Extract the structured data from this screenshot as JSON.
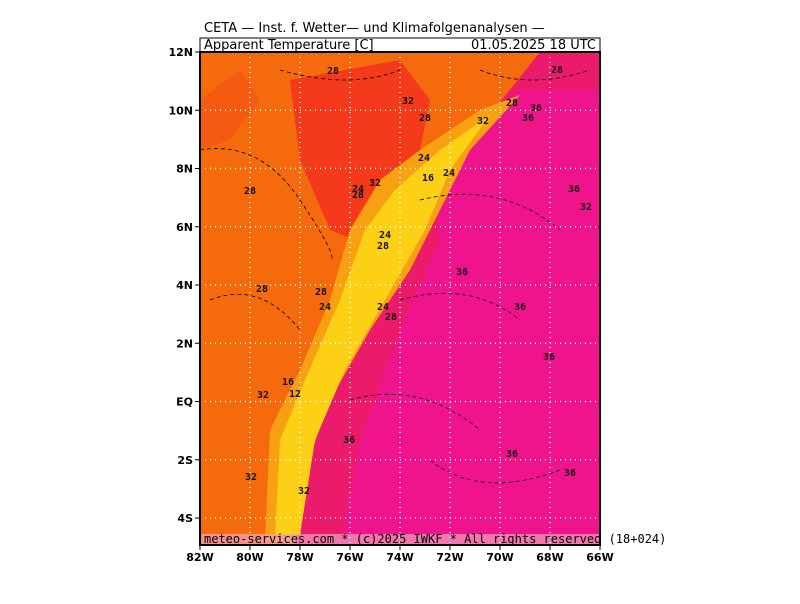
{
  "header": {
    "title": "CETA — Inst. f. Wetter— und Klimafolgenanalysen —",
    "variable": "Apparent Temperature [C]",
    "valid_time": "01.05.2025 18 UTC"
  },
  "map": {
    "x_ticks": [
      "82W",
      "80W",
      "78W",
      "76W",
      "74W",
      "72W",
      "70W",
      "68W",
      "66W"
    ],
    "y_ticks": [
      "12N",
      "10N",
      "8N",
      "6N",
      "4N",
      "2N",
      "EQ",
      "2S",
      "4S"
    ],
    "contour_labels": [
      "28",
      "32",
      "28",
      "28",
      "32",
      "36",
      "28",
      "24",
      "16",
      "24",
      "36",
      "32",
      "24",
      "28",
      "32",
      "28",
      "36",
      "28",
      "24",
      "28",
      "24",
      "28",
      "36",
      "36",
      "24",
      "28",
      "36",
      "16",
      "12",
      "32",
      "36",
      "36",
      "32",
      "32",
      "36"
    ]
  },
  "footer": {
    "credit": "meteo-services.com * (c)2025 IWKF * All rights reserved (18+024)"
  }
}
